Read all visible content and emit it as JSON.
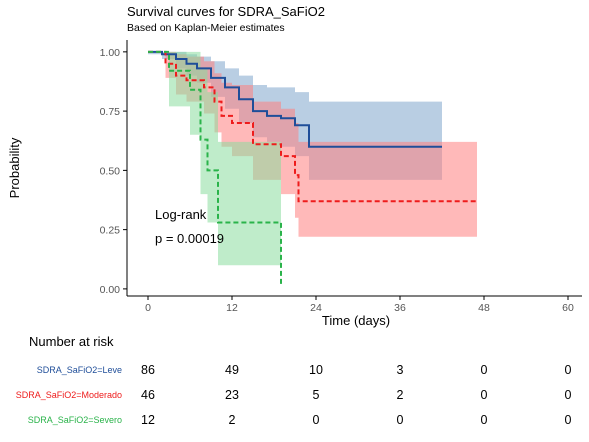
{
  "chart_data": {
    "type": "line",
    "title": "Survival curves for SDRA_SaFiO2",
    "subtitle": "Based on Kaplan-Meier estimates",
    "xlabel": "Time (days)",
    "ylabel": "Probability",
    "xlim": [
      -3,
      62
    ],
    "ylim": [
      -0.03,
      1.05
    ],
    "x_ticks": [
      0,
      12,
      24,
      36,
      48,
      60
    ],
    "y_ticks": [
      0,
      0.25,
      0.5,
      0.75,
      1
    ],
    "y_tick_labels": [
      "0.00",
      "0.25",
      "0.50",
      "0.75",
      "1.00"
    ],
    "grid": false,
    "annotations": [
      "Log-rank",
      "p = 0.00019"
    ],
    "series": [
      {
        "name": "SDRA_SaFiO2=Leve",
        "color": "#1f4e99",
        "fill": "#7fa6cc",
        "line_style": "solid",
        "steps": [
          [
            0,
            1.0
          ],
          [
            2,
            0.99
          ],
          [
            4,
            0.97
          ],
          [
            5.5,
            0.95
          ],
          [
            7,
            0.93
          ],
          [
            9,
            0.89
          ],
          [
            11,
            0.85
          ],
          [
            13,
            0.8
          ],
          [
            15,
            0.75
          ],
          [
            17,
            0.73
          ],
          [
            19,
            0.72
          ],
          [
            21,
            0.69
          ],
          [
            23,
            0.6
          ],
          [
            42,
            0.6
          ]
        ],
        "ci_upper": [
          [
            0,
            1.0
          ],
          [
            2,
            1.0
          ],
          [
            4,
            1.0
          ],
          [
            5.5,
            0.99
          ],
          [
            7,
            0.98
          ],
          [
            9,
            0.96
          ],
          [
            11,
            0.93
          ],
          [
            13,
            0.9
          ],
          [
            15,
            0.86
          ],
          [
            17,
            0.85
          ],
          [
            19,
            0.85
          ],
          [
            21,
            0.83
          ],
          [
            23,
            0.79
          ],
          [
            42,
            0.79
          ]
        ],
        "ci_lower": [
          [
            0,
            0.99
          ],
          [
            2,
            0.97
          ],
          [
            4,
            0.93
          ],
          [
            5.5,
            0.9
          ],
          [
            7,
            0.87
          ],
          [
            9,
            0.81
          ],
          [
            11,
            0.76
          ],
          [
            13,
            0.7
          ],
          [
            15,
            0.64
          ],
          [
            17,
            0.62
          ],
          [
            19,
            0.6
          ],
          [
            21,
            0.56
          ],
          [
            23,
            0.46
          ],
          [
            42,
            0.46
          ]
        ]
      },
      {
        "name": "SDRA_SaFiO2=Moderado",
        "color": "#ee1c1c",
        "fill": "#ff7f7f",
        "line_style": "dashed",
        "steps": [
          [
            0,
            1.0
          ],
          [
            2.5,
            0.95
          ],
          [
            4,
            0.9
          ],
          [
            5.5,
            0.88
          ],
          [
            8,
            0.85
          ],
          [
            9.5,
            0.79
          ],
          [
            10.5,
            0.73
          ],
          [
            12,
            0.7
          ],
          [
            15,
            0.61
          ],
          [
            19,
            0.56
          ],
          [
            21,
            0.48
          ],
          [
            21.5,
            0.37
          ],
          [
            47,
            0.37
          ]
        ],
        "ci_upper": [
          [
            0,
            1.0
          ],
          [
            2.5,
            1.0
          ],
          [
            4,
            0.99
          ],
          [
            5.5,
            0.98
          ],
          [
            8,
            0.96
          ],
          [
            9.5,
            0.91
          ],
          [
            10.5,
            0.87
          ],
          [
            12,
            0.86
          ],
          [
            15,
            0.79
          ],
          [
            19,
            0.76
          ],
          [
            21,
            0.7
          ],
          [
            21.5,
            0.62
          ],
          [
            47,
            0.62
          ]
        ],
        "ci_lower": [
          [
            0,
            1.0
          ],
          [
            2.5,
            0.89
          ],
          [
            4,
            0.82
          ],
          [
            5.5,
            0.79
          ],
          [
            8,
            0.74
          ],
          [
            9.5,
            0.66
          ],
          [
            10.5,
            0.6
          ],
          [
            12,
            0.56
          ],
          [
            15,
            0.46
          ],
          [
            19,
            0.4
          ],
          [
            21,
            0.3
          ],
          [
            21.5,
            0.22
          ],
          [
            47,
            0.22
          ]
        ]
      },
      {
        "name": "SDRA_SaFiO2=Severo",
        "color": "#2ab34a",
        "fill": "#8bdc9e",
        "line_style": "dashed",
        "steps": [
          [
            0,
            1.0
          ],
          [
            3,
            0.92
          ],
          [
            6,
            0.84
          ],
          [
            7.5,
            0.63
          ],
          [
            8.5,
            0.5
          ],
          [
            10,
            0.28
          ],
          [
            19,
            0.28
          ],
          [
            19,
            0.02
          ]
        ],
        "ci_upper": [
          [
            0,
            1.0
          ],
          [
            3,
            1.0
          ],
          [
            6,
            1.0
          ],
          [
            7.5,
            0.93
          ],
          [
            8.5,
            0.83
          ],
          [
            10,
            0.62
          ],
          [
            19,
            0.62
          ]
        ],
        "ci_lower": [
          [
            0,
            1.0
          ],
          [
            3,
            0.77
          ],
          [
            6,
            0.65
          ],
          [
            7.5,
            0.4
          ],
          [
            8.5,
            0.28
          ],
          [
            10,
            0.1
          ],
          [
            19,
            0.1
          ]
        ]
      }
    ]
  },
  "risk_table": {
    "title": "Number at risk",
    "times": [
      0,
      12,
      24,
      36,
      48,
      60
    ],
    "rows": [
      {
        "label": "SDRA_SaFiO2=Leve",
        "color": "#1f4e99",
        "counts": [
          "86",
          "49",
          "10",
          "3",
          "0",
          "0"
        ]
      },
      {
        "label": "SDRA_SaFiO2=Moderado",
        "color": "#ee1c1c",
        "counts": [
          "46",
          "23",
          "5",
          "2",
          "0",
          "0"
        ]
      },
      {
        "label": "SDRA_SaFiO2=Severo",
        "color": "#2ab34a",
        "counts": [
          "12",
          "2",
          "0",
          "0",
          "0",
          "0"
        ]
      }
    ]
  }
}
